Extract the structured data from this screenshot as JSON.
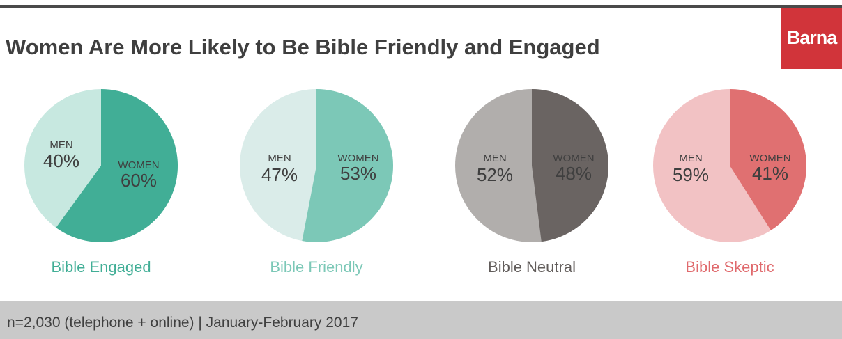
{
  "header": {
    "title": "Women Are More Likely to Be Bible Friendly and Engaged",
    "logo_text": "Barna"
  },
  "footer": {
    "note": "n=2,030 (telephone + online) | January-February 2017"
  },
  "chart_data": [
    {
      "type": "pie",
      "category": "Bible Engaged",
      "slices": [
        {
          "label": "WOMEN",
          "value": 60,
          "display": "60%",
          "color": "#41ae96"
        },
        {
          "label": "MEN",
          "value": 40,
          "display": "40%",
          "color": "#c7e8e0"
        }
      ],
      "category_color": "#41ae96"
    },
    {
      "type": "pie",
      "category": "Bible Friendly",
      "slices": [
        {
          "label": "WOMEN",
          "value": 53,
          "display": "53%",
          "color": "#7cc8b7"
        },
        {
          "label": "MEN",
          "value": 47,
          "display": "47%",
          "color": "#daece9"
        }
      ],
      "category_color": "#7cc8b7"
    },
    {
      "type": "pie",
      "category": "Bible Neutral",
      "slices": [
        {
          "label": "WOMEN",
          "value": 48,
          "display": "48%",
          "color": "#6a6462"
        },
        {
          "label": "MEN",
          "value": 52,
          "display": "52%",
          "color": "#b1aeac"
        }
      ],
      "category_color": "#615c5a"
    },
    {
      "type": "pie",
      "category": "Bible Skeptic",
      "slices": [
        {
          "label": "WOMEN",
          "value": 41,
          "display": "41%",
          "color": "#e07071"
        },
        {
          "label": "MEN",
          "value": 59,
          "display": "59%",
          "color": "#f2c2c4"
        }
      ],
      "category_color": "#e06a6d"
    }
  ]
}
